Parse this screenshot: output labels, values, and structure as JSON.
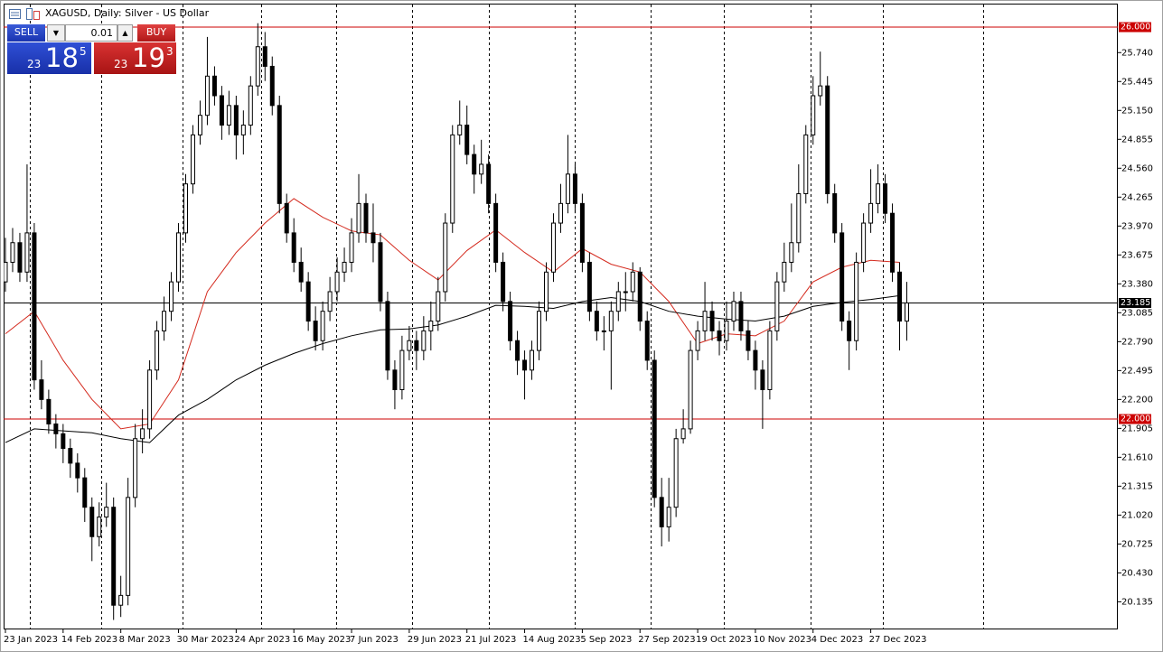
{
  "chart_data": {
    "type": "candlestick",
    "title": "XAGUSD, Daily: Silver - US Dollar",
    "categories": [
      "23 Jan 2023",
      null,
      null,
      null,
      null,
      null,
      null,
      null,
      "14 Feb 2023",
      null,
      null,
      null,
      null,
      null,
      null,
      null,
      "8 Mar 2023",
      null,
      null,
      null,
      null,
      null,
      null,
      null,
      "30 Mar 2023",
      null,
      null,
      null,
      null,
      null,
      null,
      null,
      "24 Apr 2023",
      null,
      null,
      null,
      null,
      null,
      null,
      null,
      "16 May 2023",
      null,
      null,
      null,
      null,
      null,
      null,
      null,
      "7 Jun 2023",
      null,
      null,
      null,
      null,
      null,
      null,
      null,
      "29 Jun 2023",
      null,
      null,
      null,
      null,
      null,
      null,
      null,
      "21 Jul 2023",
      null,
      null,
      null,
      null,
      null,
      null,
      null,
      "14 Aug 2023",
      null,
      null,
      null,
      null,
      null,
      null,
      null,
      "5 Sep 2023",
      null,
      null,
      null,
      null,
      null,
      null,
      null,
      "27 Sep 2023",
      null,
      null,
      null,
      null,
      null,
      null,
      null,
      "19 Oct 2023",
      null,
      null,
      null,
      null,
      null,
      null,
      null,
      "10 Nov 2023",
      null,
      null,
      null,
      null,
      null,
      null,
      null,
      "4 Dec 2023",
      null,
      null,
      null,
      null,
      null,
      null,
      null,
      "27 Dec 2023",
      null,
      null,
      null,
      null,
      null
    ],
    "open": [
      23.4,
      23.6,
      23.8,
      23.5,
      23.9,
      22.4,
      22.2,
      21.95,
      21.85,
      21.7,
      21.55,
      21.4,
      21.1,
      20.8,
      21.0,
      21.1,
      20.1,
      20.2,
      21.2,
      21.8,
      21.9,
      22.5,
      22.9,
      23.1,
      23.4,
      23.9,
      24.4,
      24.9,
      25.1,
      25.5,
      25.3,
      25.0,
      25.2,
      24.9,
      25.0,
      25.4,
      25.8,
      25.6,
      25.2,
      24.2,
      23.9,
      23.6,
      23.4,
      23.0,
      22.8,
      23.1,
      23.3,
      23.5,
      23.6,
      23.9,
      24.2,
      23.9,
      23.8,
      23.2,
      22.5,
      22.3,
      22.7,
      22.8,
      22.7,
      22.9,
      23.0,
      23.3,
      24.0,
      24.9,
      25.0,
      24.7,
      24.5,
      24.6,
      24.2,
      23.6,
      23.2,
      22.8,
      22.6,
      22.5,
      22.7,
      23.1,
      23.5,
      24.0,
      24.2,
      24.5,
      24.2,
      23.6,
      23.1,
      22.9,
      22.9,
      23.1,
      23.3,
      23.3,
      23.5,
      23.0,
      22.6,
      21.2,
      20.9,
      21.1,
      21.8,
      21.9,
      22.7,
      22.9,
      23.1,
      22.9,
      22.8,
      23.0,
      23.2,
      22.9,
      22.7,
      22.5,
      22.3,
      22.9,
      23.4,
      23.6,
      23.8,
      24.3,
      24.9,
      25.3,
      25.4,
      24.3,
      23.9,
      23.0,
      22.8,
      23.6,
      24.0,
      24.2,
      24.4,
      24.1,
      23.5,
      23.0
    ],
    "high": [
      23.85,
      23.95,
      23.9,
      24.6,
      24.0,
      22.6,
      22.3,
      22.05,
      21.95,
      21.8,
      21.65,
      21.5,
      21.2,
      21.15,
      21.35,
      21.2,
      20.4,
      21.4,
      21.95,
      22.1,
      22.6,
      23.0,
      23.25,
      23.5,
      24.0,
      24.5,
      25.0,
      25.25,
      25.9,
      25.6,
      25.4,
      25.35,
      25.3,
      25.15,
      25.5,
      26.04,
      25.95,
      25.7,
      25.3,
      24.3,
      24.05,
      23.75,
      23.5,
      23.15,
      23.2,
      23.45,
      23.65,
      23.75,
      24.05,
      24.5,
      24.3,
      24.2,
      23.9,
      23.3,
      22.6,
      22.85,
      22.95,
      22.9,
      23.05,
      23.2,
      23.45,
      24.1,
      25.0,
      25.25,
      25.2,
      24.8,
      24.85,
      24.7,
      24.3,
      23.7,
      23.3,
      22.9,
      22.7,
      22.8,
      23.2,
      23.6,
      24.1,
      24.4,
      24.9,
      24.6,
      24.3,
      23.7,
      23.2,
      23.05,
      23.2,
      23.4,
      23.5,
      23.6,
      23.55,
      23.1,
      22.7,
      21.4,
      21.4,
      21.9,
      22.1,
      22.8,
      23.0,
      23.4,
      23.2,
      23.0,
      23.2,
      23.3,
      23.3,
      23.0,
      22.8,
      22.6,
      23.0,
      23.5,
      23.8,
      24.2,
      24.6,
      25.0,
      25.5,
      25.75,
      25.5,
      24.4,
      24.0,
      23.1,
      23.7,
      24.1,
      24.55,
      24.6,
      24.5,
      24.2,
      23.6,
      23.4
    ],
    "low": [
      23.3,
      23.5,
      23.4,
      23.4,
      22.3,
      22.1,
      21.85,
      21.7,
      21.55,
      21.4,
      21.25,
      20.95,
      20.55,
      20.7,
      20.9,
      19.95,
      19.98,
      20.1,
      21.1,
      21.65,
      21.8,
      22.4,
      22.8,
      23.0,
      23.3,
      23.8,
      24.3,
      24.8,
      25.0,
      25.2,
      24.85,
      24.9,
      24.65,
      24.7,
      24.9,
      25.3,
      25.45,
      25.1,
      24.1,
      23.8,
      23.5,
      23.3,
      22.9,
      22.7,
      22.7,
      23.0,
      23.2,
      23.4,
      23.5,
      23.8,
      23.8,
      23.6,
      23.1,
      22.4,
      22.1,
      22.2,
      22.6,
      22.5,
      22.6,
      22.7,
      22.9,
      23.2,
      23.9,
      24.8,
      24.6,
      24.3,
      24.4,
      24.1,
      23.5,
      23.1,
      22.7,
      22.45,
      22.2,
      22.4,
      22.6,
      23.0,
      23.4,
      23.9,
      24.1,
      24.1,
      23.5,
      23.0,
      22.8,
      22.7,
      22.3,
      23.0,
      23.1,
      23.2,
      22.9,
      22.5,
      21.1,
      20.7,
      20.75,
      21.0,
      21.75,
      21.85,
      22.6,
      22.8,
      22.8,
      22.65,
      22.7,
      22.9,
      22.8,
      22.6,
      22.3,
      21.9,
      22.2,
      22.8,
      23.3,
      23.5,
      23.7,
      24.2,
      24.8,
      25.2,
      24.2,
      23.8,
      22.9,
      22.5,
      22.7,
      23.5,
      23.9,
      24.1,
      24.0,
      23.4,
      22.7,
      22.8
    ],
    "close": [
      23.6,
      23.8,
      23.5,
      23.9,
      22.4,
      22.2,
      21.95,
      21.85,
      21.7,
      21.55,
      21.4,
      21.1,
      20.8,
      21.0,
      21.1,
      20.1,
      20.2,
      21.2,
      21.8,
      21.9,
      22.5,
      22.9,
      23.1,
      23.4,
      23.9,
      24.4,
      24.9,
      25.1,
      25.5,
      25.3,
      25.0,
      25.2,
      24.9,
      25.0,
      25.4,
      25.8,
      25.6,
      25.2,
      24.2,
      23.9,
      23.6,
      23.4,
      23.0,
      22.8,
      23.1,
      23.3,
      23.5,
      23.6,
      23.9,
      24.2,
      23.9,
      23.8,
      23.2,
      22.5,
      22.3,
      22.7,
      22.8,
      22.7,
      22.9,
      23.0,
      23.3,
      24.0,
      24.9,
      25.0,
      24.7,
      24.5,
      24.6,
      24.2,
      23.6,
      23.2,
      22.8,
      22.6,
      22.5,
      22.7,
      23.1,
      23.5,
      24.0,
      24.2,
      24.5,
      24.2,
      23.6,
      23.1,
      22.9,
      22.9,
      23.1,
      23.3,
      23.3,
      23.5,
      23.0,
      22.6,
      21.2,
      20.9,
      21.1,
      21.8,
      21.9,
      22.7,
      22.9,
      23.1,
      22.9,
      22.8,
      23.0,
      23.2,
      22.9,
      22.7,
      22.5,
      22.3,
      22.9,
      23.4,
      23.6,
      23.8,
      24.3,
      24.9,
      25.3,
      25.4,
      24.3,
      23.9,
      23.0,
      22.8,
      23.6,
      24.0,
      24.2,
      24.4,
      24.1,
      23.5,
      23.0,
      23.185
    ],
    "ylim": [
      19.853,
      26.24
    ],
    "yticks": [
      {
        "value": 25.74,
        "label": "25.740"
      },
      {
        "value": 25.445,
        "label": "25.445"
      },
      {
        "value": 25.15,
        "label": "25.150"
      },
      {
        "value": 24.855,
        "label": "24.855"
      },
      {
        "value": 24.56,
        "label": "24.560"
      },
      {
        "value": 24.265,
        "label": "24.265"
      },
      {
        "value": 23.97,
        "label": "23.970"
      },
      {
        "value": 23.675,
        "label": "23.675"
      },
      {
        "value": 23.38,
        "label": "23.380"
      },
      {
        "value": 23.085,
        "label": "23.085"
      },
      {
        "value": 22.79,
        "label": "22.790"
      },
      {
        "value": 22.495,
        "label": "22.495"
      },
      {
        "value": 22.2,
        "label": "22.200"
      },
      {
        "value": 21.905,
        "label": "21.905"
      },
      {
        "value": 21.61,
        "label": "21.610"
      },
      {
        "value": 21.315,
        "label": "21.315"
      },
      {
        "value": 21.02,
        "label": "21.020"
      },
      {
        "value": 20.725,
        "label": "20.725"
      },
      {
        "value": 20.43,
        "label": "20.430"
      },
      {
        "value": 20.135,
        "label": "20.135"
      }
    ],
    "grid": false,
    "moving_averages": [
      {
        "color": "#d42a1e",
        "x": [
          0,
          4,
          8,
          12,
          16,
          20,
          24,
          28,
          32,
          36,
          40,
          44,
          48,
          52,
          56,
          60,
          64,
          68,
          72,
          76,
          80,
          84,
          88,
          92,
          96,
          100,
          104,
          108,
          112,
          116,
          120,
          124
        ],
        "values": [
          22.87,
          23.1,
          22.6,
          22.2,
          21.9,
          21.95,
          22.4,
          23.3,
          23.7,
          24.0,
          24.25,
          24.06,
          23.92,
          23.88,
          23.62,
          23.42,
          23.72,
          23.93,
          23.7,
          23.5,
          23.74,
          23.58,
          23.5,
          23.2,
          22.77,
          22.87,
          22.85,
          23.0,
          23.4,
          23.55,
          23.62,
          23.6
        ]
      },
      {
        "color": "#000000",
        "x": [
          0,
          4,
          8,
          12,
          16,
          20,
          24,
          28,
          32,
          36,
          40,
          44,
          48,
          52,
          56,
          60,
          64,
          68,
          72,
          76,
          80,
          84,
          88,
          92,
          96,
          100,
          104,
          108,
          112,
          116,
          120,
          124
        ],
        "values": [
          21.76,
          21.9,
          21.88,
          21.86,
          21.8,
          21.76,
          22.04,
          22.2,
          22.4,
          22.55,
          22.67,
          22.77,
          22.85,
          22.91,
          22.92,
          22.96,
          23.05,
          23.16,
          23.15,
          23.13,
          23.2,
          23.24,
          23.2,
          23.1,
          23.05,
          23.02,
          23.0,
          23.05,
          23.15,
          23.19,
          23.22,
          23.26
        ]
      }
    ],
    "levels": [
      {
        "value": 26,
        "label": "26.000",
        "color": "#cc0000"
      },
      {
        "value": 22,
        "label": "22.000",
        "color": "#cc0000"
      },
      {
        "value": 23.185,
        "label": "23.185",
        "color": "#000000"
      }
    ],
    "trade_panel": {
      "sell": "SELL",
      "buy": "BUY",
      "lot": "0.01",
      "bid": {
        "prefix": "23",
        "big": "18",
        "frac": "5"
      },
      "ask": {
        "prefix": "23",
        "big": "19",
        "frac": "3"
      }
    }
  }
}
